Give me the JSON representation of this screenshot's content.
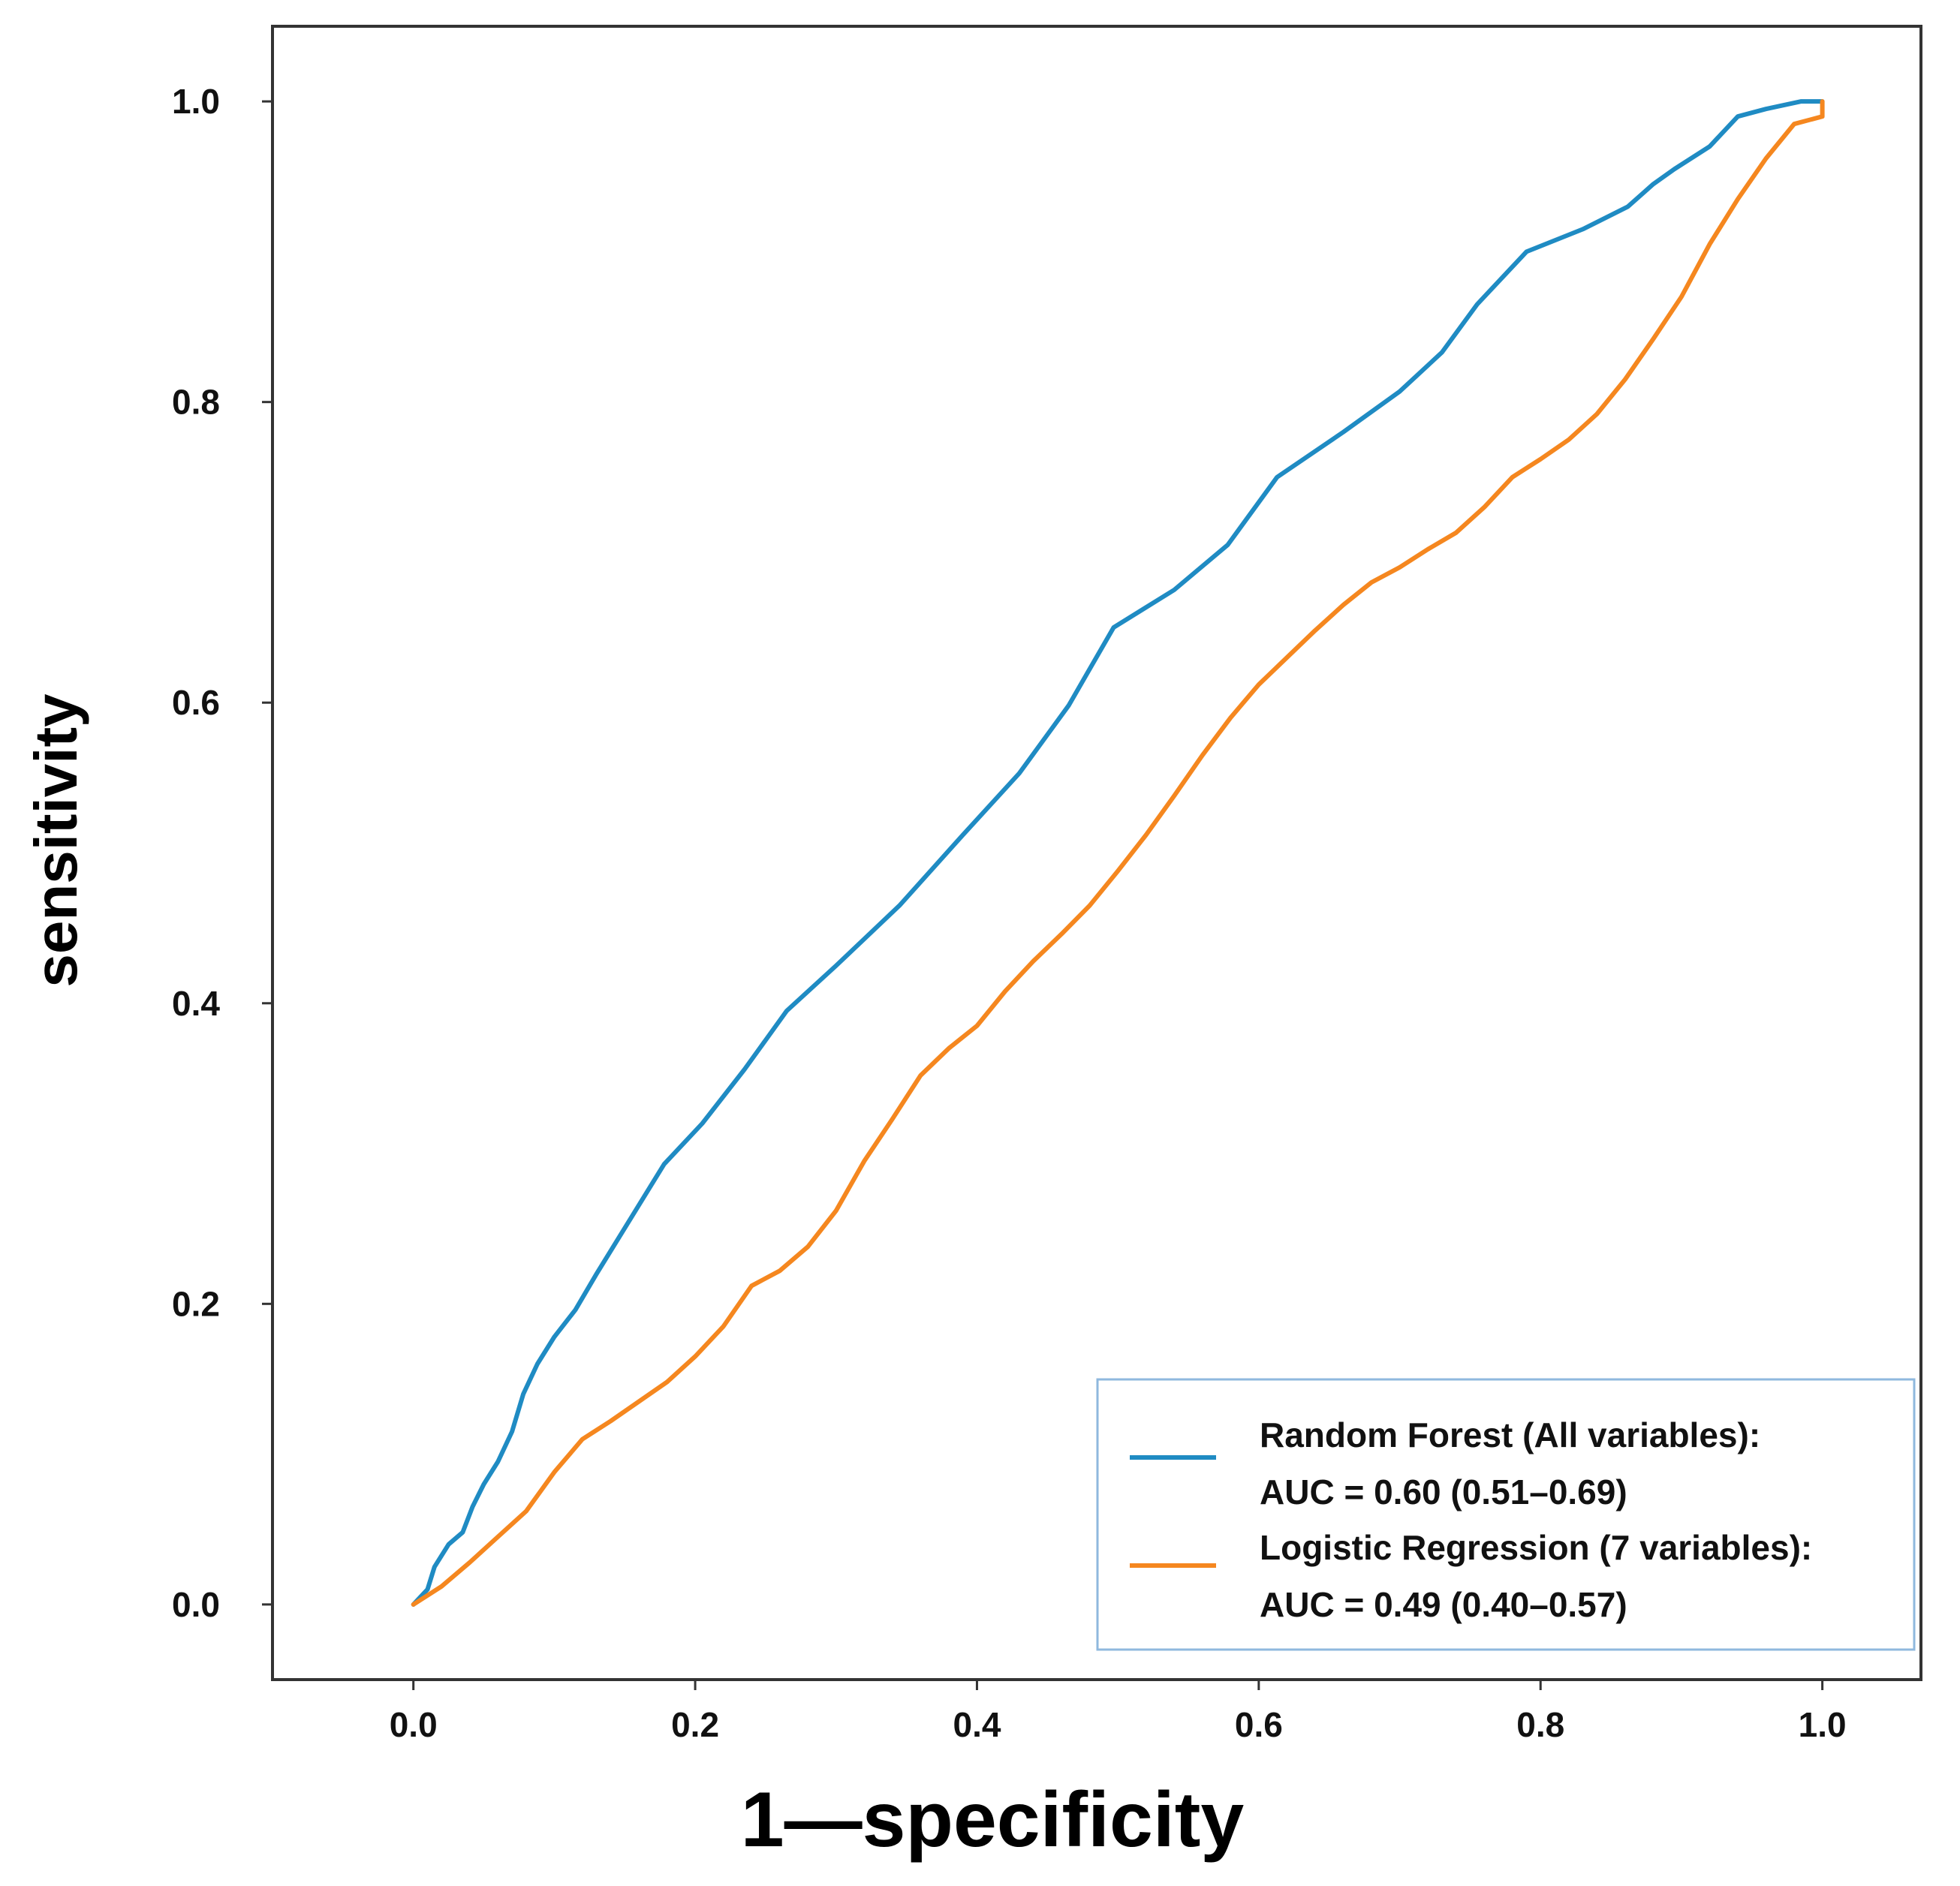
{
  "chart_data": {
    "type": "line",
    "title": "",
    "xlabel": "1—specificity",
    "ylabel": "sensitivity",
    "xlim": [
      -0.1,
      1.07
    ],
    "ylim": [
      -0.05,
      1.05
    ],
    "xticks": [
      "0.0",
      "0.2",
      "0.4",
      "0.6",
      "0.8",
      "1.0"
    ],
    "yticks": [
      "0.0",
      "0.2",
      "0.4",
      "0.6",
      "0.8",
      "1.0"
    ],
    "xtick_values": [
      0,
      0.2,
      0.4,
      0.6,
      0.8,
      1.0
    ],
    "ytick_values": [
      0,
      0.2,
      0.4,
      0.6,
      0.8,
      1.0
    ],
    "grid": false,
    "legend_position": "bottom-right",
    "series": [
      {
        "name": "Random Forest",
        "legend_line1": "Random Forest (All variables):",
        "legend_line2": "AUC = 0.60 (0.51–0.69)",
        "color": "#1f8bc3",
        "x": [
          0,
          0.01,
          0.015,
          0.025,
          0.035,
          0.042,
          0.05,
          0.06,
          0.07,
          0.078,
          0.088,
          0.1,
          0.115,
          0.13,
          0.155,
          0.178,
          0.205,
          0.235,
          0.265,
          0.3,
          0.345,
          0.39,
          0.43,
          0.465,
          0.497,
          0.54,
          0.578,
          0.613,
          0.66,
          0.7,
          0.73,
          0.755,
          0.79,
          0.83,
          0.862,
          0.88,
          0.895,
          0.92,
          0.94,
          0.96,
          0.985,
          1.0
        ],
        "y": [
          0,
          0.01,
          0.025,
          0.04,
          0.048,
          0.065,
          0.08,
          0.095,
          0.115,
          0.14,
          0.16,
          0.178,
          0.196,
          0.22,
          0.258,
          0.293,
          0.32,
          0.356,
          0.395,
          0.425,
          0.465,
          0.512,
          0.553,
          0.598,
          0.65,
          0.675,
          0.705,
          0.75,
          0.78,
          0.807,
          0.833,
          0.865,
          0.9,
          0.915,
          0.93,
          0.945,
          0.955,
          0.97,
          0.99,
          0.995,
          1.0,
          1.0
        ]
      },
      {
        "name": "Logistic Regression",
        "legend_line1": "Logistic Regression (7 variables):",
        "legend_line2": "AUC = 0.49 (0.40–0.57)",
        "color": "#f5871f",
        "x": [
          0,
          0.02,
          0.04,
          0.06,
          0.08,
          0.1,
          0.12,
          0.14,
          0.16,
          0.18,
          0.2,
          0.22,
          0.24,
          0.26,
          0.28,
          0.3,
          0.32,
          0.34,
          0.36,
          0.38,
          0.4,
          0.42,
          0.44,
          0.46,
          0.48,
          0.5,
          0.52,
          0.54,
          0.56,
          0.58,
          0.6,
          0.62,
          0.64,
          0.66,
          0.68,
          0.7,
          0.72,
          0.74,
          0.76,
          0.78,
          0.8,
          0.82,
          0.84,
          0.86,
          0.88,
          0.9,
          0.92,
          0.94,
          0.96,
          0.98,
          1.0,
          1.0
        ],
        "y": [
          0,
          0.012,
          0.028,
          0.045,
          0.062,
          0.088,
          0.11,
          0.122,
          0.135,
          0.148,
          0.165,
          0.185,
          0.212,
          0.222,
          0.238,
          0.262,
          0.295,
          0.323,
          0.352,
          0.37,
          0.385,
          0.408,
          0.428,
          0.446,
          0.465,
          0.488,
          0.512,
          0.538,
          0.565,
          0.59,
          0.612,
          0.63,
          0.648,
          0.665,
          0.68,
          0.69,
          0.702,
          0.713,
          0.73,
          0.75,
          0.762,
          0.775,
          0.792,
          0.815,
          0.842,
          0.87,
          0.905,
          0.935,
          0.962,
          0.985,
          0.99,
          1.0
        ]
      }
    ]
  }
}
